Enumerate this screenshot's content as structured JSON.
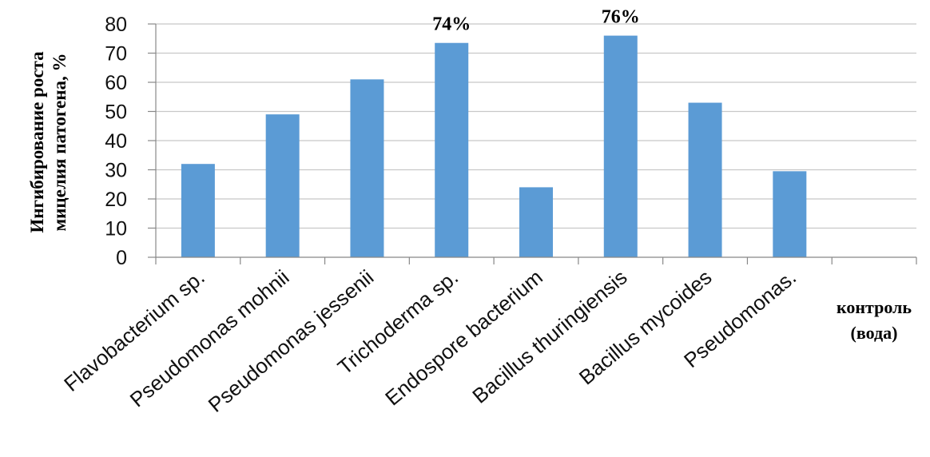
{
  "chart_data": {
    "type": "bar",
    "title": "",
    "ylabel_lines": [
      "Ингибирование роста",
      "мицелия патогена,  %"
    ],
    "xlabel": "",
    "ylim": [
      0,
      80
    ],
    "yticks": [
      0,
      10,
      20,
      30,
      40,
      50,
      60,
      70,
      80
    ],
    "grid": "horizontal",
    "legend": "none",
    "categories": [
      "Flavobacterium sp.",
      "Pseudomonas mohnii",
      "Pseudomonas jessenii",
      "Trichoderma sp.",
      "Endospore bacterium",
      "Bacillus thuringiensis",
      "Bacillus mycoides",
      "Pseudomonas.",
      "контроль (вода)"
    ],
    "values": [
      32,
      49,
      61,
      73.5,
      24,
      76,
      53,
      29.5,
      0
    ],
    "data_labels": [
      "",
      "",
      "",
      "74%",
      "",
      "76%",
      "",
      "",
      ""
    ],
    "control_label_lines": [
      "контроль",
      "(вода)"
    ],
    "colors": {
      "bar": "#5b9bd5",
      "grid": "#c8c8c8",
      "axis": "#888888"
    }
  }
}
